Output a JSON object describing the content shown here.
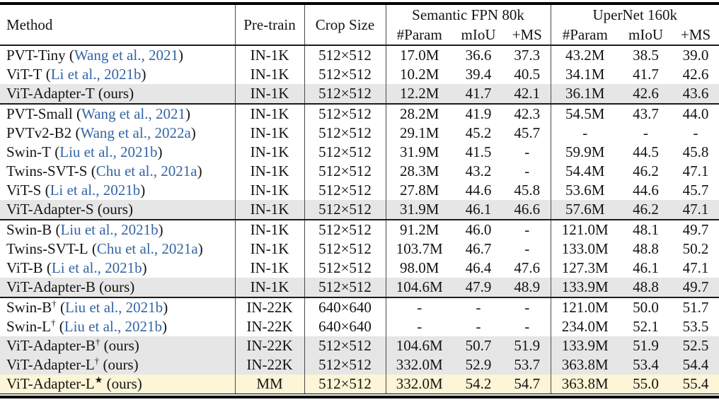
{
  "table": {
    "colors": {
      "highlight_gray": "#e6e6e6",
      "highlight_yellow": "#fcf5d7",
      "citation_blue": "#3465a4",
      "rule_black": "#000000"
    },
    "punct": {
      "open": " (",
      "close": ")"
    },
    "header": {
      "method": "Method",
      "pretrain": "Pre-train",
      "cropsize": "Crop Size",
      "group1": "Semantic FPN 80k",
      "group2": "UperNet 160k",
      "subcols": [
        "#Param",
        "mIoU",
        "+MS"
      ]
    },
    "blocks": [
      {
        "rows": [
          {
            "name": "PVT-Tiny",
            "sup": "",
            "ref": "Wang et al., 2021",
            "ref_type": "cite",
            "pretrain": "IN-1K",
            "crop": "512×512",
            "fpn": [
              "17.0M",
              "36.6",
              "37.3"
            ],
            "uper": [
              "43.2M",
              "38.5",
              "39.0"
            ],
            "bg": "none"
          },
          {
            "name": "ViT-T",
            "sup": "",
            "ref": "Li et al., 2021b",
            "ref_type": "cite",
            "pretrain": "IN-1K",
            "crop": "512×512",
            "fpn": [
              "10.2M",
              "39.4",
              "40.5"
            ],
            "uper": [
              "34.1M",
              "41.7",
              "42.6"
            ],
            "bg": "none"
          },
          {
            "name": "ViT-Adapter-T",
            "sup": "",
            "ref": "ours",
            "ref_type": "plain",
            "pretrain": "IN-1K",
            "crop": "512×512",
            "fpn": [
              "12.2M",
              "41.7",
              "42.1"
            ],
            "uper": [
              "36.1M",
              "42.6",
              "43.6"
            ],
            "bg": "gray"
          }
        ]
      },
      {
        "rows": [
          {
            "name": "PVT-Small",
            "sup": "",
            "ref": "Wang et al., 2021",
            "ref_type": "cite",
            "pretrain": "IN-1K",
            "crop": "512×512",
            "fpn": [
              "28.2M",
              "41.9",
              "42.3"
            ],
            "uper": [
              "54.5M",
              "43.7",
              "44.0"
            ],
            "bg": "none"
          },
          {
            "name": "PVTv2-B2",
            "sup": "",
            "ref": "Wang et al., 2022a",
            "ref_type": "cite",
            "pretrain": "IN-1K",
            "crop": "512×512",
            "fpn": [
              "29.1M",
              "45.2",
              "45.7"
            ],
            "uper": [
              "-",
              "-",
              "-"
            ],
            "bg": "none"
          },
          {
            "name": "Swin-T",
            "sup": "",
            "ref": "Liu et al., 2021b",
            "ref_type": "cite",
            "pretrain": "IN-1K",
            "crop": "512×512",
            "fpn": [
              "31.9M",
              "41.5",
              "-"
            ],
            "uper": [
              "59.9M",
              "44.5",
              "45.8"
            ],
            "bg": "none"
          },
          {
            "name": "Twins-SVT-S",
            "sup": "",
            "ref": "Chu et al., 2021a",
            "ref_type": "cite",
            "pretrain": "IN-1K",
            "crop": "512×512",
            "fpn": [
              "28.3M",
              "43.2",
              "-"
            ],
            "uper": [
              "54.4M",
              "46.2",
              "47.1"
            ],
            "bg": "none"
          },
          {
            "name": "ViT-S",
            "sup": "",
            "ref": "Li et al., 2021b",
            "ref_type": "cite",
            "pretrain": "IN-1K",
            "crop": "512×512",
            "fpn": [
              "27.8M",
              "44.6",
              "45.8"
            ],
            "uper": [
              "53.6M",
              "44.6",
              "45.7"
            ],
            "bg": "none"
          },
          {
            "name": "ViT-Adapter-S",
            "sup": "",
            "ref": "ours",
            "ref_type": "plain",
            "pretrain": "IN-1K",
            "crop": "512×512",
            "fpn": [
              "31.9M",
              "46.1",
              "46.6"
            ],
            "uper": [
              "57.6M",
              "46.2",
              "47.1"
            ],
            "bg": "gray"
          }
        ]
      },
      {
        "rows": [
          {
            "name": "Swin-B",
            "sup": "",
            "ref": "Liu et al., 2021b",
            "ref_type": "cite",
            "pretrain": "IN-1K",
            "crop": "512×512",
            "fpn": [
              "91.2M",
              "46.0",
              "-"
            ],
            "uper": [
              "121.0M",
              "48.1",
              "49.7"
            ],
            "bg": "none"
          },
          {
            "name": "Twins-SVT-L",
            "sup": "",
            "ref": "Chu et al., 2021a",
            "ref_type": "cite",
            "pretrain": "IN-1K",
            "crop": "512×512",
            "fpn": [
              "103.7M",
              "46.7",
              "-"
            ],
            "uper": [
              "133.0M",
              "48.8",
              "50.2"
            ],
            "bg": "none"
          },
          {
            "name": "ViT-B",
            "sup": "",
            "ref": "Li et al., 2021b",
            "ref_type": "cite",
            "pretrain": "IN-1K",
            "crop": "512×512",
            "fpn": [
              "98.0M",
              "46.4",
              "47.6"
            ],
            "uper": [
              "127.3M",
              "46.1",
              "47.1"
            ],
            "bg": "none"
          },
          {
            "name": "ViT-Adapter-B",
            "sup": "",
            "ref": "ours",
            "ref_type": "plain",
            "pretrain": "IN-1K",
            "crop": "512×512",
            "fpn": [
              "104.6M",
              "47.9",
              "48.9"
            ],
            "uper": [
              "133.9M",
              "48.8",
              "49.7"
            ],
            "bg": "gray"
          }
        ]
      },
      {
        "rows": [
          {
            "name": "Swin-B",
            "sup": "†",
            "ref": "Liu et al., 2021b",
            "ref_type": "cite",
            "pretrain": "IN-22K",
            "crop": "640×640",
            "fpn": [
              "-",
              "-",
              "-"
            ],
            "uper": [
              "121.0M",
              "50.0",
              "51.7"
            ],
            "bg": "none"
          },
          {
            "name": "Swin-L",
            "sup": "†",
            "ref": "Liu et al., 2021b",
            "ref_type": "cite",
            "pretrain": "IN-22K",
            "crop": "640×640",
            "fpn": [
              "-",
              "-",
              "-"
            ],
            "uper": [
              "234.0M",
              "52.1",
              "53.5"
            ],
            "bg": "none"
          },
          {
            "name": "ViT-Adapter-B",
            "sup": "†",
            "ref": "ours",
            "ref_type": "plain",
            "pretrain": "IN-22K",
            "crop": "512×512",
            "fpn": [
              "104.6M",
              "50.7",
              "51.9"
            ],
            "uper": [
              "133.9M",
              "51.9",
              "52.5"
            ],
            "bg": "gray"
          },
          {
            "name": "ViT-Adapter-L",
            "sup": "†",
            "ref": "ours",
            "ref_type": "plain",
            "pretrain": "IN-22K",
            "crop": "512×512",
            "fpn": [
              "332.0M",
              "52.9",
              "53.7"
            ],
            "uper": [
              "363.8M",
              "53.4",
              "54.4"
            ],
            "bg": "gray"
          },
          {
            "name": "ViT-Adapter-L",
            "sup": "★",
            "ref": "ours",
            "ref_type": "plain",
            "pretrain": "MM",
            "crop": "512×512",
            "fpn": [
              "332.0M",
              "54.2",
              "54.7"
            ],
            "uper": [
              "363.8M",
              "55.0",
              "55.4"
            ],
            "bg": "yellow"
          }
        ]
      }
    ]
  }
}
